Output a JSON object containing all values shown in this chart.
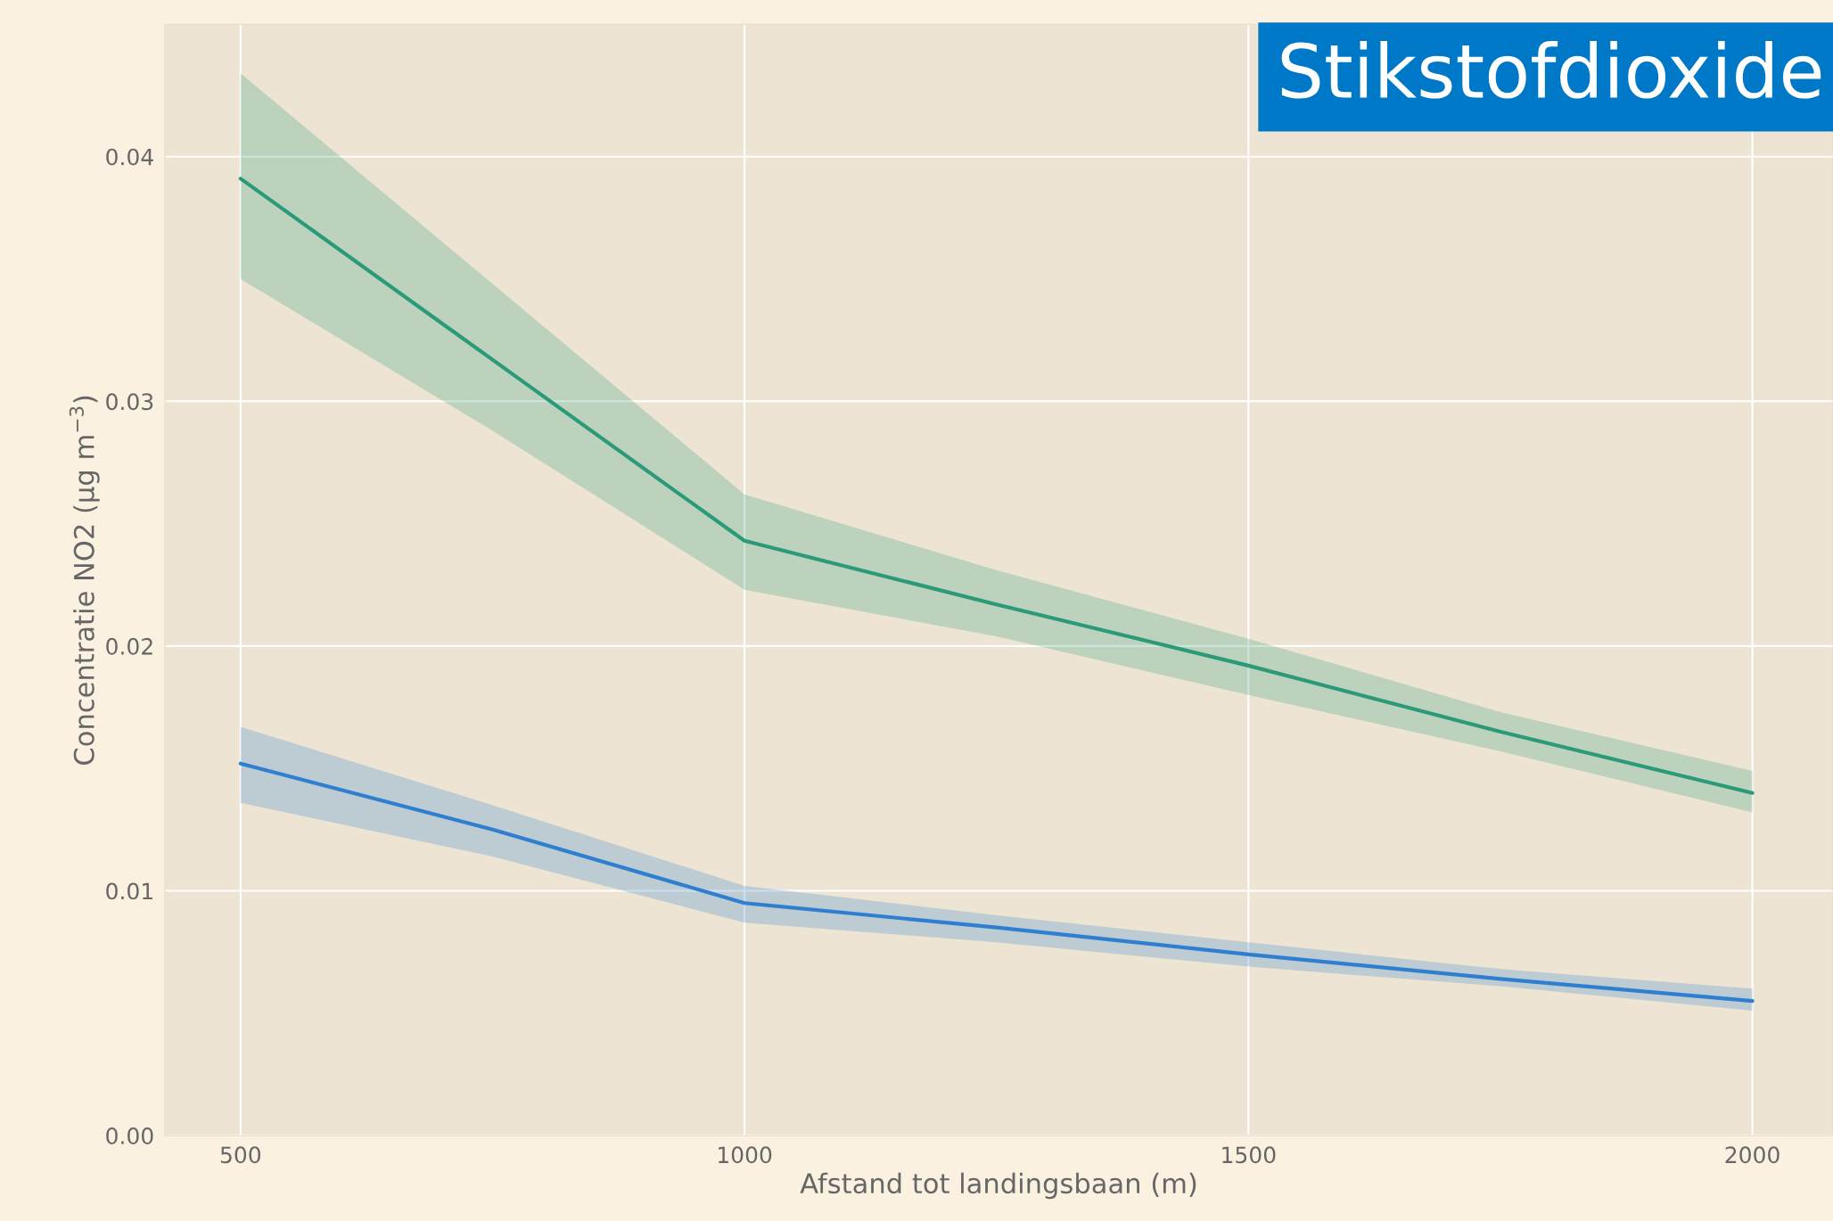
{
  "chart_data": {
    "type": "line",
    "xlabel": "Afstand tot landingsbaan (m)",
    "ylabel": "Concentratie NO2 (µg m$^{−3}$)",
    "annotations": [
      "Stikstofdioxide"
    ],
    "x": [
      500,
      750,
      1000,
      1250,
      1500,
      1750,
      2000
    ],
    "series": [
      {
        "color": "#2a9a78",
        "values": [
          0.0391,
          0.0317,
          0.0243,
          0.0217,
          0.0192,
          0.0165,
          0.014
        ],
        "lower": [
          0.035,
          0.0288,
          0.0223,
          0.0204,
          0.018,
          0.0157,
          0.0132
        ],
        "upper": [
          0.0434,
          0.0348,
          0.0262,
          0.0231,
          0.0203,
          0.0173,
          0.0149
        ]
      },
      {
        "color": "#2f7fd0",
        "values": [
          0.0152,
          0.0125,
          0.0095,
          0.0085,
          0.0074,
          0.0064,
          0.0055
        ],
        "lower": [
          0.0136,
          0.0114,
          0.0087,
          0.0079,
          0.0069,
          0.0061,
          0.0051
        ],
        "upper": [
          0.0167,
          0.0135,
          0.0102,
          0.009,
          0.0079,
          0.0068,
          0.006
        ]
      }
    ],
    "xlim": [
      425,
      2080
    ],
    "ylim": [
      0,
      0.0454
    ],
    "xticks": [
      500,
      1000,
      1500,
      2000
    ],
    "yticks": [
      {
        "value": 0,
        "label": "0.00"
      },
      {
        "value": 0.01,
        "label": "0.01"
      },
      {
        "value": 0.02,
        "label": "0.02"
      },
      {
        "value": 0.03,
        "label": "0.03"
      },
      {
        "value": 0.04,
        "label": "0.04"
      }
    ],
    "grid": true
  }
}
